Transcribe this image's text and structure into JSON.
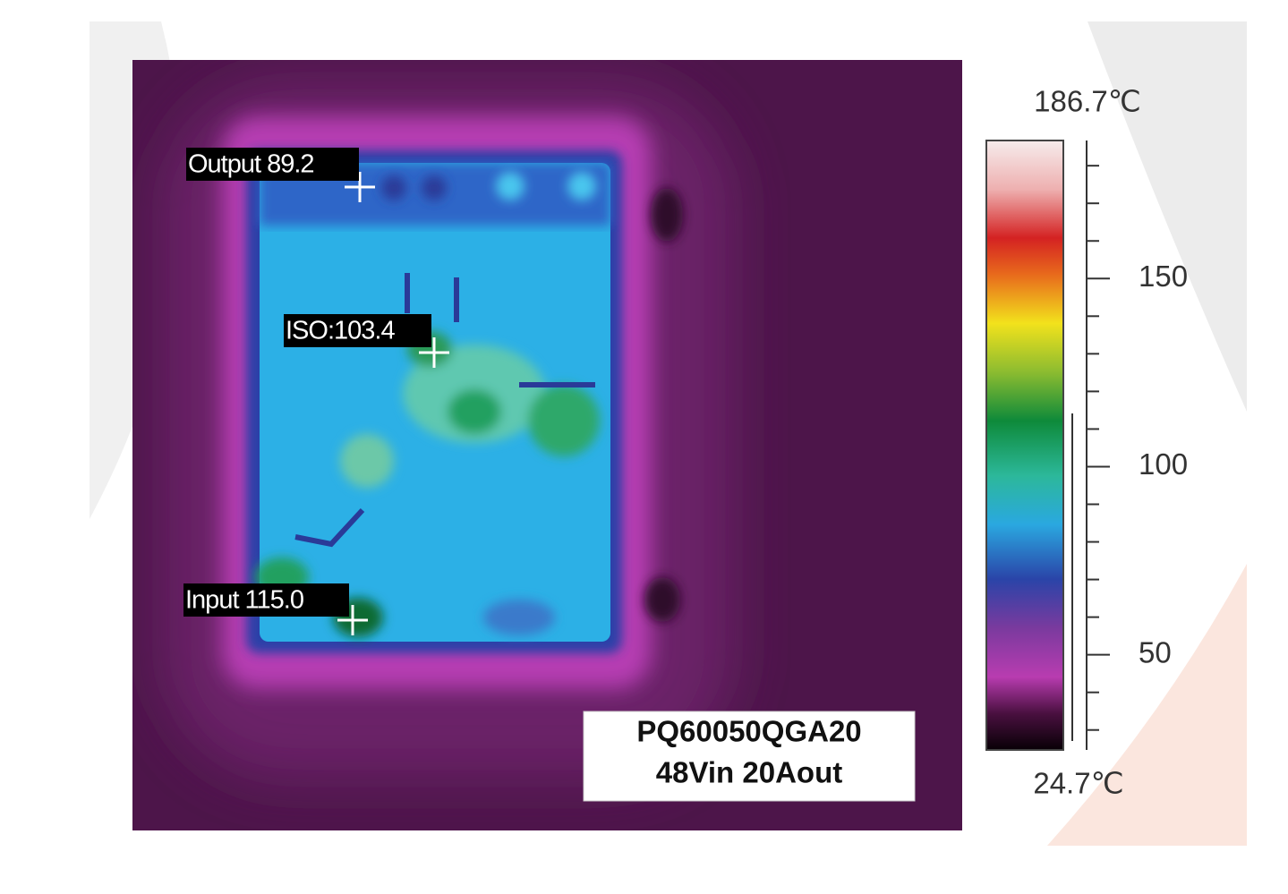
{
  "image": {
    "probes": [
      {
        "label": "Output 89.2"
      },
      {
        "label": "ISO:103.4"
      },
      {
        "label": "Input 115.0"
      }
    ],
    "caption": [
      "PQ60050QGA20",
      "48Vin 20Aout"
    ],
    "colorbar": {
      "max": {
        "value": 186.7,
        "label": "186.7℃"
      },
      "min": {
        "value": 24.7,
        "label": "24.7℃"
      },
      "ticks": [
        150,
        100,
        50
      ],
      "minor_ticks": [
        30,
        40,
        60,
        70,
        80,
        90,
        110,
        120,
        130,
        140,
        160,
        170,
        180
      ]
    }
  }
}
